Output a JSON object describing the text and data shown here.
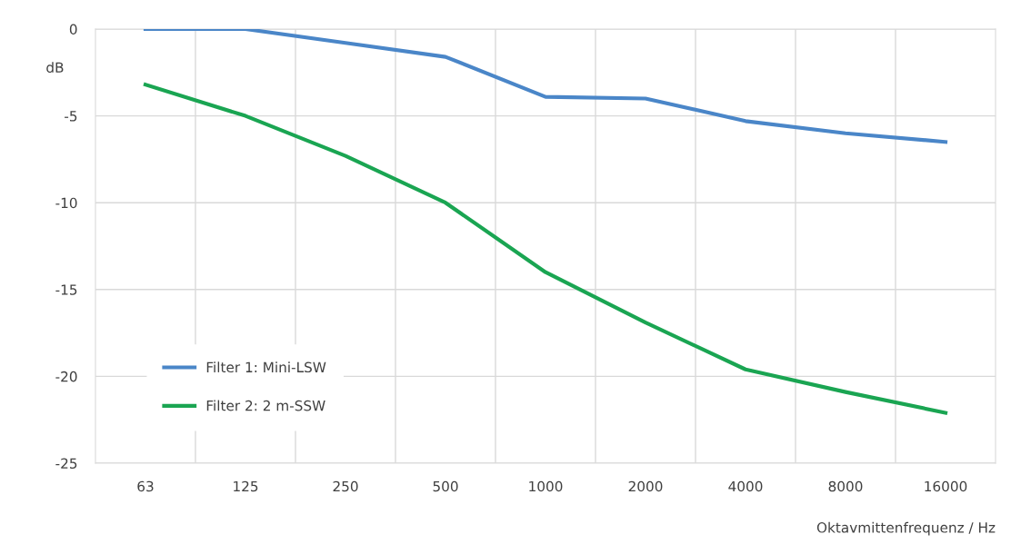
{
  "chart_data": {
    "type": "line",
    "xlabel": "Oktavmittenfrequenz / Hz",
    "ylabel": "dB",
    "categories": [
      "63",
      "125",
      "250",
      "500",
      "1000",
      "2000",
      "4000",
      "8000",
      "16000"
    ],
    "series": [
      {
        "name": "Filter 1: Mini-LSW",
        "color": "#4a86c8",
        "values": [
          0,
          0,
          -0.8,
          -1.6,
          -3.9,
          -4.0,
          -5.3,
          -6.0,
          -6.5
        ]
      },
      {
        "name": "Filter 2: 2 m-SSW",
        "color": "#1aa552",
        "values": [
          -3.2,
          -5.0,
          -7.3,
          -10.0,
          -14.0,
          -16.9,
          -19.6,
          -20.9,
          -22.1
        ]
      }
    ],
    "ylim": [
      -25,
      0
    ],
    "yticks": [
      -25,
      -20,
      -15,
      -10,
      -5,
      0
    ],
    "grid": true,
    "legend": "bottom left",
    "marker": "none",
    "line_style": "solid"
  }
}
